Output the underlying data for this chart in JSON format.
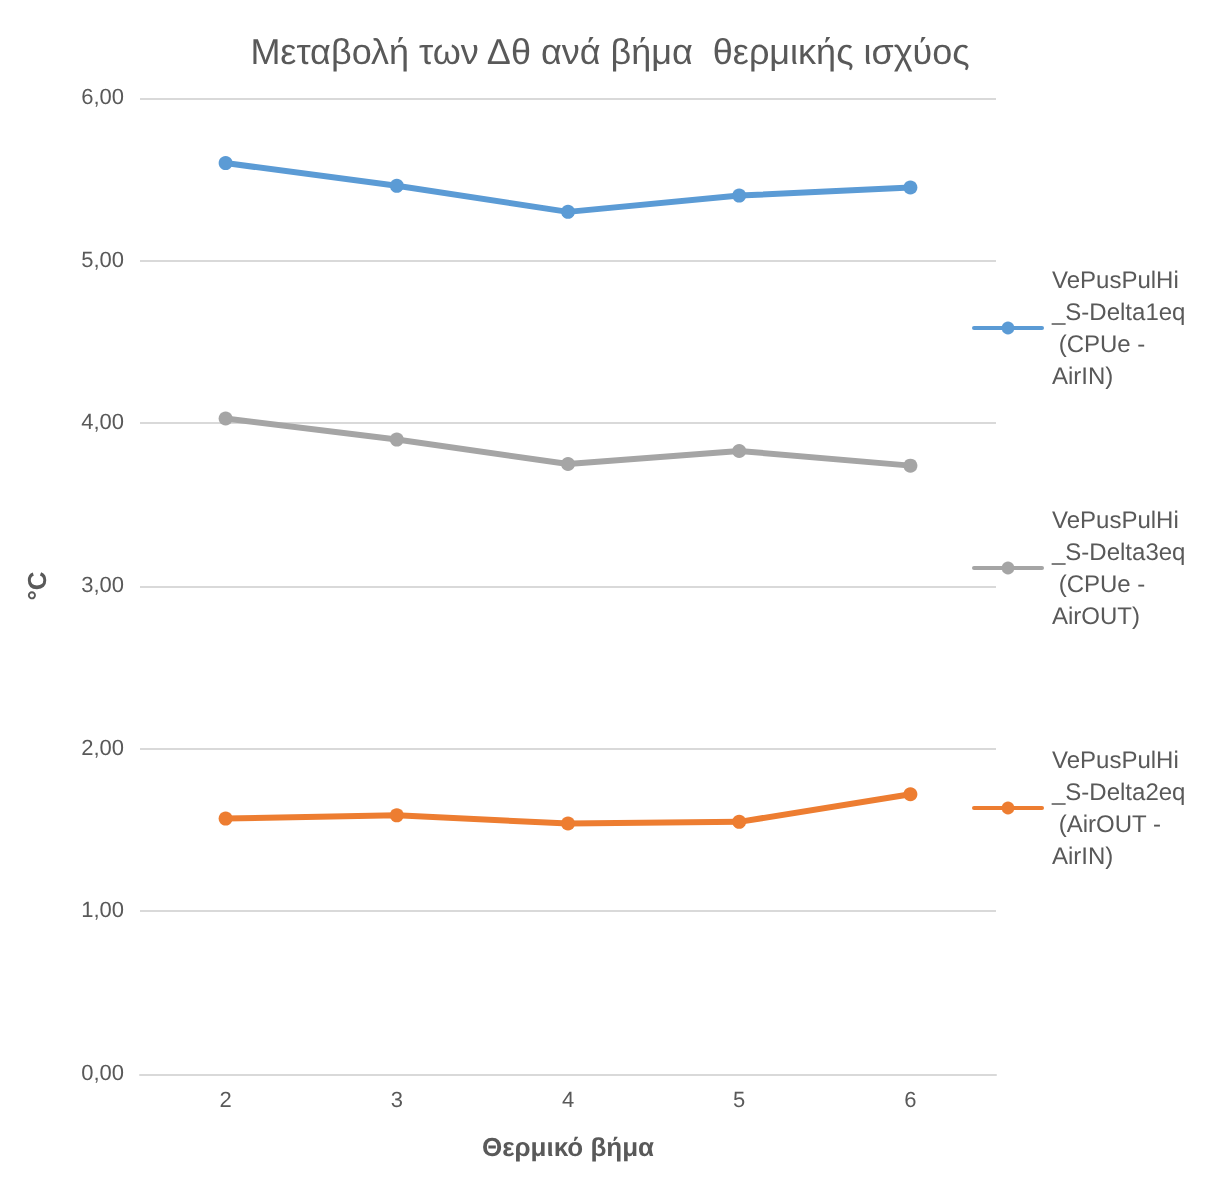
{
  "chart_data": {
    "type": "line",
    "title": "Μεταβολή των Δθ ανά βήμα  θερμικής ισχύος",
    "xlabel": "Θερμικό βήμα",
    "ylabel": "°C",
    "categories": [
      "2",
      "3",
      "4",
      "5",
      "6"
    ],
    "series": [
      {
        "name": "VePusPulHi_S-Delta1eq (CPUe - AirIN)",
        "color": "#5b9bd5",
        "values": [
          5.6,
          5.46,
          5.3,
          5.4,
          5.45
        ]
      },
      {
        "name": "VePusPulHi_S-Delta3eq (CPUe - AirOUT)",
        "color": "#a5a5a5",
        "values": [
          4.03,
          3.9,
          3.75,
          3.83,
          3.74
        ]
      },
      {
        "name": "VePusPulHi_S-Delta2eq (AirOUT - AirIN)",
        "color": "#ed7d31",
        "values": [
          1.57,
          1.59,
          1.54,
          1.55,
          1.72
        ]
      }
    ],
    "ylim": [
      0,
      6
    ],
    "yticks": [
      {
        "value": 0,
        "label": "0,00"
      },
      {
        "value": 1,
        "label": "1,00"
      },
      {
        "value": 2,
        "label": "2,00"
      },
      {
        "value": 3,
        "label": "3,00"
      },
      {
        "value": 4,
        "label": "4,00"
      },
      {
        "value": 5,
        "label": "5,00"
      },
      {
        "value": 6,
        "label": "6,00"
      }
    ],
    "grid": "y",
    "legend": "right",
    "marker": "circle",
    "line_style": "solid"
  }
}
